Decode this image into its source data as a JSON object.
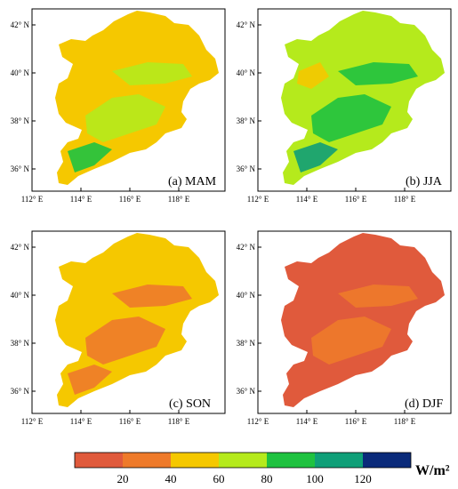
{
  "colors": {
    "c_0_20": "#e05a3c",
    "c_20_40": "#ee7a2a",
    "c_40_60": "#f5c800",
    "c_60_80": "#b5ea1c",
    "c_80_100": "#1fc240",
    "c_100_120": "#0f9f78",
    "c_120_plus": "#0a2a7a",
    "frame": "#000000"
  },
  "axes": {
    "x_ticks": [
      "112° E",
      "114° E",
      "116° E",
      "118° E"
    ],
    "y_ticks": [
      "42° N",
      "40° N",
      "38° N",
      "36° N"
    ]
  },
  "panels": [
    {
      "label": "(a) MAM",
      "base": "c_40_60",
      "patches": [
        "c_60_80",
        "c_60_80",
        "c_80_100"
      ]
    },
    {
      "label": "(b) JJA",
      "base": "c_60_80",
      "patches": [
        "c_80_100",
        "c_80_100",
        "c_100_120",
        "c_40_60"
      ]
    },
    {
      "label": "(c) SON",
      "base": "c_40_60",
      "patches": [
        "c_20_40",
        "c_20_40",
        "c_20_40"
      ]
    },
    {
      "label": "(d) DJF",
      "base": "c_0_20",
      "patches": [
        "c_20_40",
        "c_20_40"
      ]
    }
  ],
  "legend": {
    "tick_labels": [
      "20",
      "40",
      "60",
      "80",
      "100",
      "120"
    ],
    "unit": "W/m²",
    "bins": [
      "c_0_20",
      "c_20_40",
      "c_40_60",
      "c_60_80",
      "c_80_100",
      "c_100_120",
      "c_120_plus"
    ]
  }
}
